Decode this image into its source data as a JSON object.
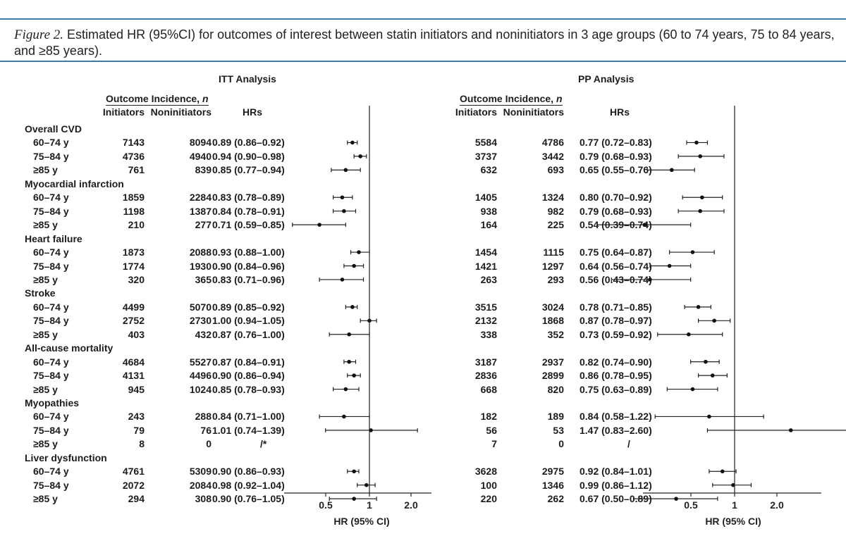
{
  "caption": {
    "figure_label": "Figure 2.",
    "text": "Estimated HR (95%CI) for outcomes of interest between statin initiators and noninitiators in 3 age groups (60 to 74 years, 75 to 84 years, and ≥85 years)."
  },
  "headers": {
    "outcome_incidence_prefix": "Outcome Incidence, ",
    "outcome_incidence_n": "n",
    "initiators": "Initiators",
    "noninitiators": "Noninitiators",
    "hrs": "HRs"
  },
  "panels": [
    {
      "title": "ITT Analysis",
      "axis_label": "HR (95% CI)",
      "ticks": [
        "0.5",
        "1",
        "2.0"
      ],
      "groups": [
        {
          "name": "Overall CVD",
          "rows": [
            {
              "age": "60–74 y",
              "init": "7143",
              "noninit": "8094",
              "hr_text": "0.89 (0.86–0.92)",
              "hr": 0.89,
              "lo": 0.86,
              "hi": 0.92
            },
            {
              "age": "75–84 y",
              "init": "4736",
              "noninit": "4940",
              "hr_text": "0.94 (0.90–0.98)",
              "hr": 0.94,
              "lo": 0.9,
              "hi": 0.98
            },
            {
              "age": "≥85 y",
              "init": "761",
              "noninit": "839",
              "hr_text": "0.85 (0.77–0.94)",
              "hr": 0.85,
              "lo": 0.77,
              "hi": 0.94
            }
          ]
        },
        {
          "name": "Myocardial infarction",
          "rows": [
            {
              "age": "60–74 y",
              "init": "1859",
              "noninit": "2284",
              "hr_text": "0.83 (0.78–0.89)",
              "hr": 0.83,
              "lo": 0.78,
              "hi": 0.89
            },
            {
              "age": "75–84 y",
              "init": "1198",
              "noninit": "1387",
              "hr_text": "0.84 (0.78–0.91)",
              "hr": 0.84,
              "lo": 0.78,
              "hi": 0.91
            },
            {
              "age": "≥85 y",
              "init": "210",
              "noninit": "277",
              "hr_text": "0.71 (0.59–0.85)",
              "hr": 0.71,
              "lo": 0.59,
              "hi": 0.85
            }
          ]
        },
        {
          "name": "Heart failure",
          "rows": [
            {
              "age": "60–74 y",
              "init": "1873",
              "noninit": "2088",
              "hr_text": "0.93 (0.88–1.00)",
              "hr": 0.93,
              "lo": 0.88,
              "hi": 1.0
            },
            {
              "age": "75–84 y",
              "init": "1774",
              "noninit": "1930",
              "hr_text": "0.90 (0.84–0.96)",
              "hr": 0.9,
              "lo": 0.84,
              "hi": 0.96
            },
            {
              "age": "≥85 y",
              "init": "320",
              "noninit": "365",
              "hr_text": "0.83 (0.71–0.96)",
              "hr": 0.83,
              "lo": 0.71,
              "hi": 0.96
            }
          ]
        },
        {
          "name": "Stroke",
          "rows": [
            {
              "age": "60–74 y",
              "init": "4499",
              "noninit": "5070",
              "hr_text": "0.89 (0.85–0.92)",
              "hr": 0.89,
              "lo": 0.85,
              "hi": 0.92
            },
            {
              "age": "75–84 y",
              "init": "2752",
              "noninit": "2730",
              "hr_text": "1.00 (0.94–1.05)",
              "hr": 1.0,
              "lo": 0.94,
              "hi": 1.05
            },
            {
              "age": "≥85 y",
              "init": "403",
              "noninit": "432",
              "hr_text": "0.87 (0.76–1.00)",
              "hr": 0.87,
              "lo": 0.76,
              "hi": 1.0
            }
          ]
        },
        {
          "name": "All-cause mortality",
          "rows": [
            {
              "age": "60–74 y",
              "init": "4684",
              "noninit": "5527",
              "hr_text": "0.87 (0.84–0.91)",
              "hr": 0.87,
              "lo": 0.84,
              "hi": 0.91
            },
            {
              "age": "75–84 y",
              "init": "4131",
              "noninit": "4496",
              "hr_text": "0.90 (0.86–0.94)",
              "hr": 0.9,
              "lo": 0.86,
              "hi": 0.94
            },
            {
              "age": "≥85 y",
              "init": "945",
              "noninit": "1024",
              "hr_text": "0.85 (0.78–0.93)",
              "hr": 0.85,
              "lo": 0.78,
              "hi": 0.93
            }
          ]
        },
        {
          "name": "Myopathies",
          "rows": [
            {
              "age": "60–74 y",
              "init": "243",
              "noninit": "288",
              "hr_text": "0.84 (0.71–1.00)",
              "hr": 0.84,
              "lo": 0.71,
              "hi": 1.0
            },
            {
              "age": "75–84 y",
              "init": "79",
              "noninit": "76",
              "hr_text": "1.01 (0.74–1.39)",
              "hr": 1.01,
              "lo": 0.74,
              "hi": 1.39
            },
            {
              "age": "≥85 y",
              "init": "8",
              "noninit": "0",
              "hr_text": "/*",
              "hr": null,
              "lo": null,
              "hi": null
            }
          ]
        },
        {
          "name": "Liver dysfunction",
          "rows": [
            {
              "age": "60–74 y",
              "init": "4761",
              "noninit": "5309",
              "hr_text": "0.90 (0.86–0.93)",
              "hr": 0.9,
              "lo": 0.86,
              "hi": 0.93
            },
            {
              "age": "75–84 y",
              "init": "2072",
              "noninit": "2084",
              "hr_text": "0.98 (0.92–1.04)",
              "hr": 0.98,
              "lo": 0.92,
              "hi": 1.04
            },
            {
              "age": "≥85 y",
              "init": "294",
              "noninit": "308",
              "hr_text": "0.90 (0.76–1.05)",
              "hr": 0.9,
              "lo": 0.76,
              "hi": 1.05
            }
          ]
        }
      ]
    },
    {
      "title": "PP Analysis",
      "axis_label": "HR (95% CI)",
      "ticks": [
        "0.5",
        "1",
        "2.0"
      ],
      "groups": [
        {
          "name": "Overall CVD",
          "rows": [
            {
              "age": "60–74 y",
              "init": "5584",
              "noninit": "4786",
              "hr_text": "0.77 (0.72–0.83)",
              "hr": 0.77,
              "lo": 0.72,
              "hi": 0.83
            },
            {
              "age": "75–84 y",
              "init": "3737",
              "noninit": "3442",
              "hr_text": "0.79 (0.68–0.93)",
              "hr": 0.79,
              "lo": 0.68,
              "hi": 0.93
            },
            {
              "age": "≥85 y",
              "init": "632",
              "noninit": "693",
              "hr_text": "0.65 (0.55–0.76)",
              "hr": 0.65,
              "lo": 0.55,
              "hi": 0.76
            }
          ]
        },
        {
          "name": "Myocardial infarction",
          "rows": [
            {
              "age": "60–74 y",
              "init": "1405",
              "noninit": "1324",
              "hr_text": "0.80 (0.70–0.92)",
              "hr": 0.8,
              "lo": 0.7,
              "hi": 0.92
            },
            {
              "age": "75–84 y",
              "init": "938",
              "noninit": "982",
              "hr_text": "0.79 (0.68–0.93)",
              "hr": 0.79,
              "lo": 0.68,
              "hi": 0.93
            },
            {
              "age": "≥85 y",
              "init": "164",
              "noninit": "225",
              "hr_text": "0.54 (0.39–0.74)",
              "hr": 0.54,
              "lo": 0.39,
              "hi": 0.74
            }
          ]
        },
        {
          "name": "Heart failure",
          "rows": [
            {
              "age": "60–74 y",
              "init": "1454",
              "noninit": "1115",
              "hr_text": "0.75 (0.64–0.87)",
              "hr": 0.75,
              "lo": 0.64,
              "hi": 0.87
            },
            {
              "age": "75–84 y",
              "init": "1421",
              "noninit": "1297",
              "hr_text": "0.64 (0.56–0.74)",
              "hr": 0.64,
              "lo": 0.56,
              "hi": 0.74
            },
            {
              "age": "≥85 y",
              "init": "263",
              "noninit": "293",
              "hr_text": "0.56 (0.43–0.74)",
              "hr": 0.56,
              "lo": 0.43,
              "hi": 0.74
            }
          ]
        },
        {
          "name": "Stroke",
          "rows": [
            {
              "age": "60–74 y",
              "init": "3515",
              "noninit": "3024",
              "hr_text": "0.78 (0.71–0.85)",
              "hr": 0.78,
              "lo": 0.71,
              "hi": 0.85
            },
            {
              "age": "75–84 y",
              "init": "2132",
              "noninit": "1868",
              "hr_text": "0.87 (0.78–0.97)",
              "hr": 0.87,
              "lo": 0.78,
              "hi": 0.97
            },
            {
              "age": "≥85 y",
              "init": "338",
              "noninit": "352",
              "hr_text": "0.73 (0.59–0.92)",
              "hr": 0.73,
              "lo": 0.59,
              "hi": 0.92
            }
          ]
        },
        {
          "name": "All-cause mortality",
          "rows": [
            {
              "age": "60–74 y",
              "init": "3187",
              "noninit": "2937",
              "hr_text": "0.82 (0.74–0.90)",
              "hr": 0.82,
              "lo": 0.74,
              "hi": 0.9
            },
            {
              "age": "75–84 y",
              "init": "2836",
              "noninit": "2899",
              "hr_text": "0.86 (0.78–0.95)",
              "hr": 0.86,
              "lo": 0.78,
              "hi": 0.95
            },
            {
              "age": "≥85 y",
              "init": "668",
              "noninit": "820",
              "hr_text": "0.75 (0.63–0.89)",
              "hr": 0.75,
              "lo": 0.63,
              "hi": 0.89
            }
          ]
        },
        {
          "name": "Myopathies",
          "rows": [
            {
              "age": "60–74 y",
              "init": "182",
              "noninit": "189",
              "hr_text": "0.84 (0.58–1.22)",
              "hr": 0.84,
              "lo": 0.58,
              "hi": 1.22
            },
            {
              "age": "75–84 y",
              "init": "56",
              "noninit": "53",
              "hr_text": "1.47 (0.83–2.60)",
              "hr": 1.47,
              "lo": 0.83,
              "hi": 2.6
            },
            {
              "age": "≥85 y",
              "init": "7",
              "noninit": "0",
              "hr_text": "/",
              "hr": null,
              "lo": null,
              "hi": null
            }
          ]
        },
        {
          "name": "Liver dysfunction",
          "rows": [
            {
              "age": "60–74 y",
              "init": "3628",
              "noninit": "2975",
              "hr_text": "0.92 (0.84–1.01)",
              "hr": 0.92,
              "lo": 0.84,
              "hi": 1.01
            },
            {
              "age": "75–84 y",
              "init": "100",
              "noninit": "1346",
              "hr_text": "0.99 (0.86–1.12)",
              "hr": 0.99,
              "lo": 0.86,
              "hi": 1.12
            },
            {
              "age": "≥85 y",
              "init": "220",
              "noninit": "262",
              "hr_text": "0.67 (0.50–0.89)",
              "hr": 0.67,
              "lo": 0.5,
              "hi": 0.89
            }
          ]
        }
      ]
    }
  ]
}
